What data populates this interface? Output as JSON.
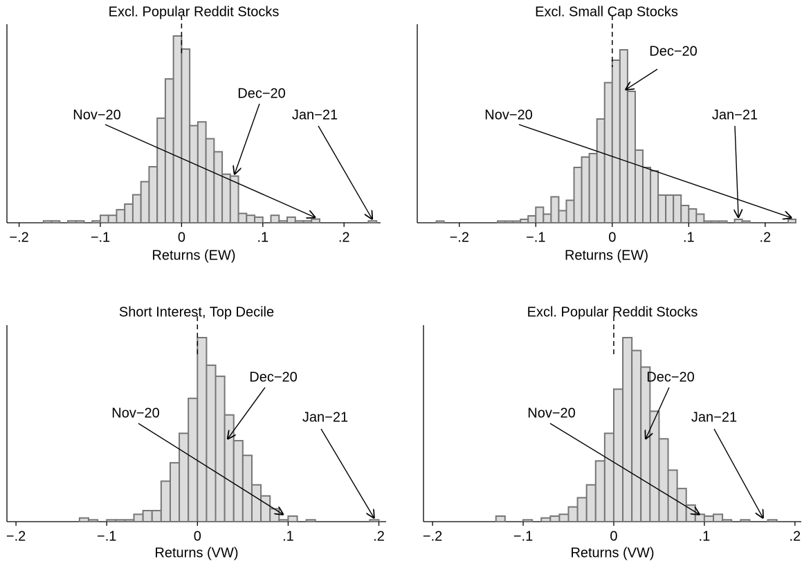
{
  "chart_data": [
    {
      "type": "histogram",
      "title": "Excl. Popular Reddit Stocks",
      "x_label": "Returns  (EW)",
      "bins": [
        -0.17,
        -0.16,
        -0.15,
        -0.14,
        -0.13,
        -0.12,
        -0.11,
        -0.1,
        -0.09,
        -0.08,
        -0.07,
        -0.06,
        -0.05,
        -0.04,
        -0.03,
        -0.02,
        -0.01,
        0,
        0.01,
        0.02,
        0.03,
        0.04,
        0.05,
        0.06,
        0.07,
        0.08,
        0.09,
        0.1,
        0.11,
        0.12,
        0.13,
        0.14,
        0.15,
        0.16,
        0.17,
        0.18,
        0.19,
        0.2,
        0.21,
        0.22,
        0.23,
        0.24
      ],
      "values": [
        1,
        1,
        0,
        1,
        1,
        0,
        1,
        4,
        4,
        7,
        10,
        15,
        22,
        30,
        56,
        77,
        100,
        93,
        52,
        54,
        45,
        38,
        26,
        25,
        5,
        4,
        3,
        0,
        4,
        1,
        3,
        1,
        1,
        2,
        0,
        0,
        0,
        0,
        0,
        0,
        1
      ],
      "color": "#dcdcdc",
      "xlim": [
        -0.215,
        0.245
      ],
      "ylim": [
        0,
        100
      ],
      "xticks": [
        {
          "value": -0.2,
          "label": "−.2"
        },
        {
          "value": -0.1,
          "label": "−.1"
        },
        0,
        {
          "value": 0.1,
          "label": ".1"
        },
        {
          "value": 0.2,
          "label": ".2"
        }
      ],
      "vline": 0,
      "annotations": [
        {
          "text": "Nov−20",
          "x": 0.165,
          "y": 2
        },
        {
          "text": "Dec−20",
          "x": 0.065,
          "y": 25
        },
        {
          "text": "Jan−21",
          "x": 0.235,
          "y": 1
        }
      ]
    },
    {
      "type": "histogram",
      "title": "Excl. Small Cap Stocks",
      "x_label": "Returns  (EW)",
      "bins": [
        -0.23,
        -0.22,
        -0.21,
        -0.2,
        -0.19,
        -0.18,
        -0.17,
        -0.16,
        -0.15,
        -0.14,
        -0.13,
        -0.12,
        -0.11,
        -0.1,
        -0.09,
        -0.08,
        -0.07,
        -0.06,
        -0.05,
        -0.04,
        -0.03,
        -0.02,
        -0.01,
        0,
        0.01,
        0.02,
        0.03,
        0.04,
        0.05,
        0.06,
        0.07,
        0.08,
        0.09,
        0.1,
        0.11,
        0.12,
        0.13,
        0.14,
        0.15,
        0.16,
        0.17,
        0.18,
        0.19,
        0.2,
        0.21,
        0.22,
        0.23,
        0.24
      ],
      "values": [
        1,
        0,
        0,
        0,
        0,
        0,
        0,
        0,
        1,
        1,
        1,
        2,
        4,
        9,
        5,
        15,
        7,
        13,
        32,
        38,
        40,
        60,
        81,
        94,
        100,
        76,
        42,
        32,
        30,
        16,
        16,
        16,
        10,
        8,
        5,
        1,
        1,
        1,
        0,
        2,
        1,
        0,
        0,
        0,
        0,
        0,
        2
      ],
      "color": "#dcdcdc",
      "xlim": [
        -0.255,
        0.24
      ],
      "ylim": [
        0,
        100
      ],
      "xticks": [
        {
          "value": -0.2,
          "label": "−.2"
        },
        {
          "value": -0.1,
          "label": "−.1"
        },
        0,
        {
          "value": 0.1,
          "label": ".1"
        },
        {
          "value": 0.2,
          "label": ".2"
        }
      ],
      "vline": 0,
      "annotations": [
        {
          "text": "Dec−20",
          "x": 0.017,
          "y": 76
        },
        {
          "text": "Nov−20",
          "x": 0.235,
          "y": 2
        },
        {
          "text": "Jan−21",
          "x": 0.165,
          "y": 2
        }
      ]
    },
    {
      "type": "histogram",
      "title": "Short Interest, Top Decile",
      "x_label": "Returns  (VW)",
      "bins": [
        -0.13,
        -0.12,
        -0.11,
        -0.1,
        -0.09,
        -0.08,
        -0.07,
        -0.06,
        -0.05,
        -0.04,
        -0.03,
        -0.02,
        -0.01,
        0,
        0.01,
        0.02,
        0.03,
        0.04,
        0.05,
        0.06,
        0.07,
        0.08,
        0.09,
        0.1,
        0.11,
        0.12,
        0.13,
        0.14,
        0.15,
        0.16,
        0.17,
        0.18,
        0.19,
        0.2
      ],
      "values": [
        2,
        1,
        0,
        1,
        1,
        1,
        4,
        6,
        6,
        22,
        32,
        48,
        67,
        100,
        85,
        79,
        58,
        44,
        36,
        20,
        14,
        7,
        1,
        3,
        0,
        1,
        0,
        0,
        0,
        0,
        0,
        0,
        1
      ],
      "color": "#dcdcdc",
      "xlim": [
        -0.21,
        0.208
      ],
      "ylim": [
        0,
        100
      ],
      "xticks": [
        {
          "value": -0.2,
          "label": "−.2"
        },
        {
          "value": -0.1,
          "label": "−.1"
        },
        0,
        {
          "value": 0.1,
          "label": ".1"
        },
        {
          "value": 0.2,
          "label": ".2"
        }
      ],
      "vline": 0,
      "annotations": [
        {
          "text": "Dec−20",
          "x": 0.033,
          "y": 44
        },
        {
          "text": "Nov−20",
          "x": 0.095,
          "y": 3
        },
        {
          "text": "Jan−21",
          "x": 0.195,
          "y": 1
        }
      ]
    },
    {
      "type": "histogram",
      "title": "Excl. Popular Reddit Stocks",
      "x_label": "Returns  (VW)",
      "bins": [
        -0.13,
        -0.12,
        -0.11,
        -0.1,
        -0.09,
        -0.08,
        -0.07,
        -0.06,
        -0.05,
        -0.04,
        -0.03,
        -0.02,
        -0.01,
        0,
        0.01,
        0.02,
        0.03,
        0.04,
        0.05,
        0.06,
        0.07,
        0.08,
        0.09,
        0.1,
        0.11,
        0.12,
        0.13,
        0.14,
        0.15,
        0.16,
        0.17,
        0.18
      ],
      "values": [
        3,
        0,
        0,
        1,
        0,
        2,
        3,
        4,
        8,
        13,
        20,
        33,
        48,
        72,
        100,
        93,
        84,
        60,
        45,
        28,
        18,
        9,
        4,
        3,
        4,
        1,
        0,
        1,
        0,
        0,
        1
      ],
      "color": "#dcdcdc",
      "xlim": [
        -0.21,
        0.207
      ],
      "ylim": [
        0,
        100
      ],
      "xticks": [
        {
          "value": -0.2,
          "label": "−.2"
        },
        {
          "value": -0.1,
          "label": "−.1"
        },
        0,
        {
          "value": 0.1,
          "label": ".1"
        },
        {
          "value": 0.2,
          "label": ".2"
        }
      ],
      "vline": 0,
      "annotations": [
        {
          "text": "Dec−20",
          "x": 0.035,
          "y": 44
        },
        {
          "text": "Nov−20",
          "x": 0.095,
          "y": 3
        },
        {
          "text": "Jan−21",
          "x": 0.165,
          "y": 1
        }
      ]
    }
  ]
}
